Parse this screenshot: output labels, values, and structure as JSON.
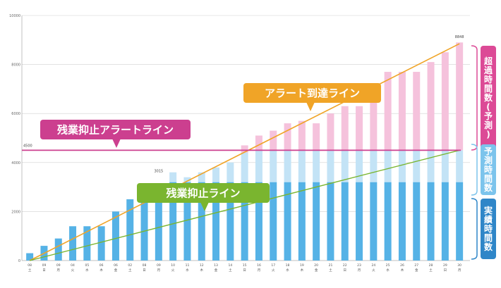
{
  "chart_data": {
    "type": "bar",
    "ylim": [
      0,
      10000
    ],
    "yticks": [
      "10000",
      "8000",
      "6000",
      "4000",
      "2000",
      "0"
    ],
    "categories": [
      [
        "08",
        "土"
      ],
      [
        "09",
        "日"
      ],
      [
        "09",
        "月"
      ],
      [
        "04",
        "火"
      ],
      [
        "05",
        "水"
      ],
      [
        "06",
        "木"
      ],
      [
        "06",
        "金"
      ],
      [
        "02",
        "土"
      ],
      [
        "08",
        "日"
      ],
      [
        "09",
        "月"
      ],
      [
        "10",
        "火"
      ],
      [
        "11",
        "水"
      ],
      [
        "12",
        "木"
      ],
      [
        "13",
        "金"
      ],
      [
        "14",
        "土"
      ],
      [
        "15",
        "日"
      ],
      [
        "16",
        "月"
      ],
      [
        "17",
        "火"
      ],
      [
        "18",
        "水"
      ],
      [
        "19",
        "木"
      ],
      [
        "20",
        "金"
      ],
      [
        "21",
        "土"
      ],
      [
        "22",
        "日"
      ],
      [
        "23",
        "月"
      ],
      [
        "24",
        "火"
      ],
      [
        "25",
        "水"
      ],
      [
        "26",
        "木"
      ],
      [
        "27",
        "金"
      ],
      [
        "28",
        "土"
      ],
      [
        "29",
        "日"
      ],
      [
        "30",
        "月"
      ]
    ],
    "series": [
      {
        "name": "実績時間数",
        "color": "#55b2e6",
        "values": [
          300,
          600,
          900,
          1400,
          1400,
          1400,
          2000,
          2500,
          2500,
          2950,
          3200,
          3200,
          3200,
          3200,
          3200,
          3200,
          3200,
          3200,
          3200,
          3200,
          3200,
          3200,
          3200,
          3200,
          3200,
          3200,
          3200,
          3200,
          3200,
          3200,
          3200
        ]
      },
      {
        "name": "予測時間数",
        "color": "#c3e3f6",
        "values": [
          0,
          0,
          0,
          0,
          0,
          0,
          0,
          0,
          0,
          0,
          400,
          200,
          400,
          600,
          800,
          1200,
          1300,
          1300,
          1300,
          1300,
          1300,
          1300,
          1300,
          1300,
          1300,
          1300,
          1300,
          1300,
          1300,
          1300,
          1300
        ]
      },
      {
        "name": "超過時間数(予測)",
        "color": "#f5c2dc",
        "values": [
          0,
          0,
          0,
          0,
          0,
          0,
          0,
          0,
          0,
          0,
          0,
          0,
          0,
          0,
          0,
          300,
          600,
          800,
          1100,
          1200,
          1100,
          1500,
          1800,
          1800,
          2100,
          3200,
          3200,
          3200,
          3600,
          4000,
          4400
        ]
      }
    ],
    "annotations": {
      "top_value_label": "8848",
      "mid_value_label": "3015",
      "threshold_value_label": "4500"
    },
    "lines": {
      "alert_line": {
        "label": "アラート到達ライン",
        "color": "#f0a427",
        "from": 0,
        "to": 8848
      },
      "suppress_alert_line": {
        "label": "残業抑止アラートライン",
        "color": "#cc3f8f",
        "value": 4500
      },
      "suppress_line": {
        "label": "残業抑止ライン",
        "color": "#7ab52f",
        "from": 0,
        "to": 4500
      }
    },
    "legend": {
      "pink": "超過時間数(予測)",
      "blue_light": "予測時間数",
      "blue_dark": "実績時間数"
    }
  }
}
